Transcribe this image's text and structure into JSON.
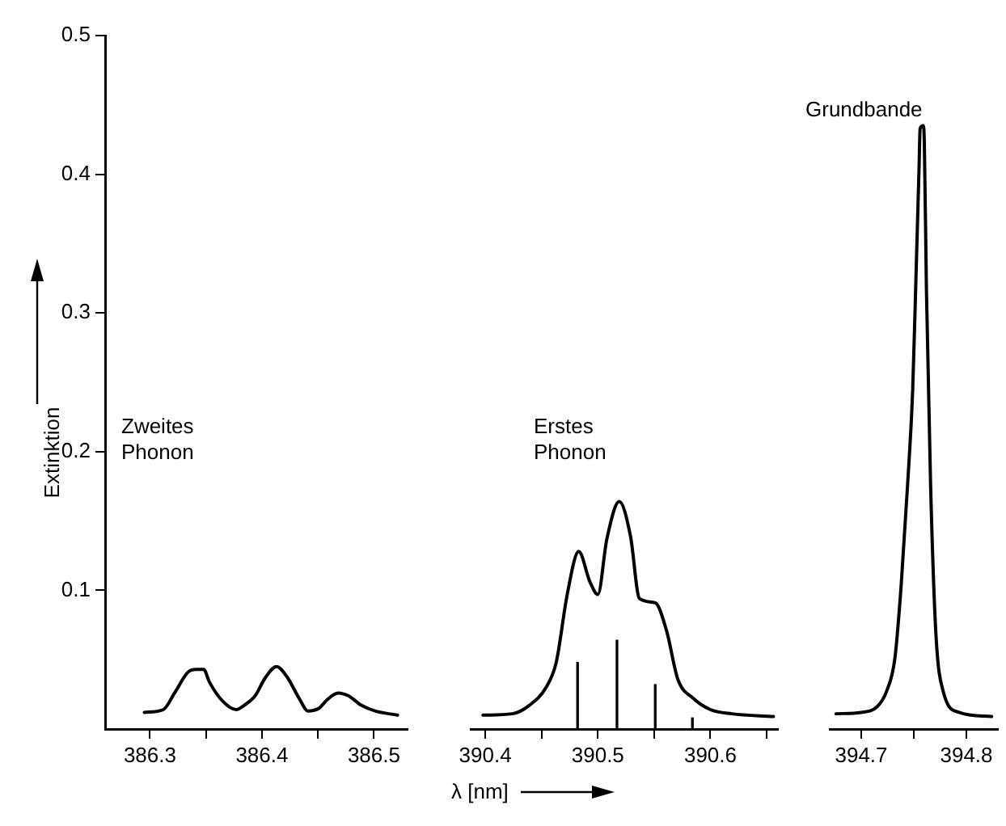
{
  "chart_data": [
    {
      "type": "line",
      "ylabel": "Extinktion",
      "marker": "none",
      "xlim": [
        386.26,
        386.53
      ],
      "xticks": [
        386.3,
        {
          "value": 386.35,
          "label": null
        },
        386.4,
        {
          "value": 386.45,
          "label": null
        },
        386.5
      ],
      "ylim": [
        0,
        0.5
      ],
      "yticks": [
        0.1,
        0.2,
        0.3,
        0.4,
        0.5
      ],
      "annotations": [
        "Zweites Phonon"
      ],
      "series": [
        {
          "color": "#000000",
          "x": [
            386.295,
            386.312,
            386.322,
            386.334,
            386.341,
            386.348,
            386.353,
            386.365,
            386.377,
            386.384,
            386.394,
            386.403,
            386.413,
            386.422,
            386.434,
            386.441,
            386.451,
            386.458,
            386.468,
            386.477,
            386.489,
            386.501,
            386.521
          ],
          "values": [
            0.012,
            0.014,
            0.026,
            0.041,
            0.043,
            0.043,
            0.034,
            0.02,
            0.014,
            0.017,
            0.024,
            0.037,
            0.045,
            0.038,
            0.021,
            0.013,
            0.015,
            0.021,
            0.026,
            0.024,
            0.017,
            0.013,
            0.01
          ]
        }
      ]
    },
    {
      "type": "line",
      "xlabel": "λ [nm]",
      "tick_labels": "x",
      "marker": "none",
      "xlim": [
        390.387,
        390.66
      ],
      "xticks": [
        390.4,
        {
          "value": 390.45,
          "label": null
        },
        390.5,
        {
          "value": 390.55,
          "label": null
        },
        390.6,
        {
          "value": 390.65,
          "label": null
        }
      ],
      "ylim": [
        0,
        0.5
      ],
      "yticks": [
        0.1,
        0.2,
        0.3,
        0.4,
        0.5
      ],
      "annotations": [
        "Erstes Phonon"
      ],
      "series": [
        {
          "color": "#000000",
          "x": [
            390.398,
            390.424,
            390.439,
            390.454,
            390.463,
            390.473,
            390.483,
            390.493,
            390.5,
            390.508,
            390.519,
            390.529,
            390.537,
            390.551,
            390.561,
            390.571,
            390.585,
            390.6,
            390.619,
            390.656
          ],
          "values": [
            0.01,
            0.011,
            0.017,
            0.03,
            0.048,
            0.098,
            0.128,
            0.106,
            0.097,
            0.137,
            0.164,
            0.139,
            0.094,
            0.091,
            0.071,
            0.036,
            0.022,
            0.014,
            0.011,
            0.009
          ]
        },
        {
          "type": "bar",
          "color": "#000000",
          "x": [
            390.482,
            390.517,
            390.551,
            390.584
          ],
          "values": [
            0.048,
            0.064,
            0.032,
            0.008
          ]
        }
      ]
    },
    {
      "type": "line",
      "tick_labels": "x",
      "marker": "none",
      "xlim": [
        394.67,
        394.83
      ],
      "xticks": [
        394.7,
        {
          "value": 394.75,
          "label": null
        },
        394.8
      ],
      "ylim": [
        0,
        0.5
      ],
      "yticks": [
        0.1,
        0.2,
        0.3,
        0.4,
        0.5
      ],
      "annotations": [
        "Grundbande"
      ],
      "series": [
        {
          "color": "#000000",
          "x": [
            394.676,
            394.7,
            394.715,
            394.724,
            394.732,
            394.738,
            394.744,
            394.749,
            394.752,
            394.755,
            394.756,
            394.759,
            394.76,
            394.762,
            394.766,
            394.771,
            394.778,
            394.793,
            394.824
          ],
          "values": [
            0.011,
            0.012,
            0.016,
            0.027,
            0.051,
            0.104,
            0.175,
            0.246,
            0.324,
            0.405,
            0.433,
            0.435,
            0.423,
            0.317,
            0.175,
            0.069,
            0.027,
            0.012,
            0.009
          ]
        }
      ]
    }
  ]
}
